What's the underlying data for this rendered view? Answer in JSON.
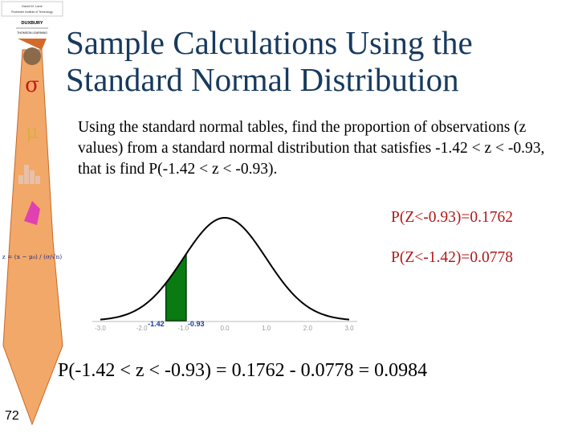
{
  "sidebar": {
    "logo_line1": "David M. Lane",
    "logo_line2": "Rochester Institute of Technology",
    "publisher": "DUXBURY",
    "imprint": "THOMSON LEARNING",
    "sigma_symbol": "σ",
    "mu_symbol": "μ",
    "formula_text": "z = (x − μ₀) / (σ/√n)",
    "tie_color": "#f0a060",
    "tie_edge_color": "#d46a2a"
  },
  "slide": {
    "title_line1": "Sample Calculations Using the",
    "title_line2": "Standard Normal Distribution",
    "body": "Using the standard normal tables, find the proportion of observations (z values) from a standard normal distribution that satisfies -1.42 < z < -0.93, that is find P(-1.42 < z < -0.93).",
    "prob_1": "P(Z<-0.93)=0.1762",
    "prob_2": "P(Z<-1.42)=0.0778",
    "result": "P(-1.42 < z < -0.93) = 0.1762 - 0.0778 = 0.0984",
    "page_number": "72",
    "title_color": "#173a5e",
    "prob_color": "#b01818",
    "shade_color": "#0a7a12"
  },
  "chart_data": {
    "type": "area",
    "curve": "standard-normal-density",
    "x_ticks": [
      "-3.0",
      "-2.0",
      "-1.0",
      "0.0",
      "1.0",
      "2.0",
      "3.0"
    ],
    "xlim": [
      -3,
      3
    ],
    "shaded_from": -1.42,
    "shaded_to": -0.93,
    "shaded_labels": [
      "-1.42",
      "-0.93"
    ]
  }
}
